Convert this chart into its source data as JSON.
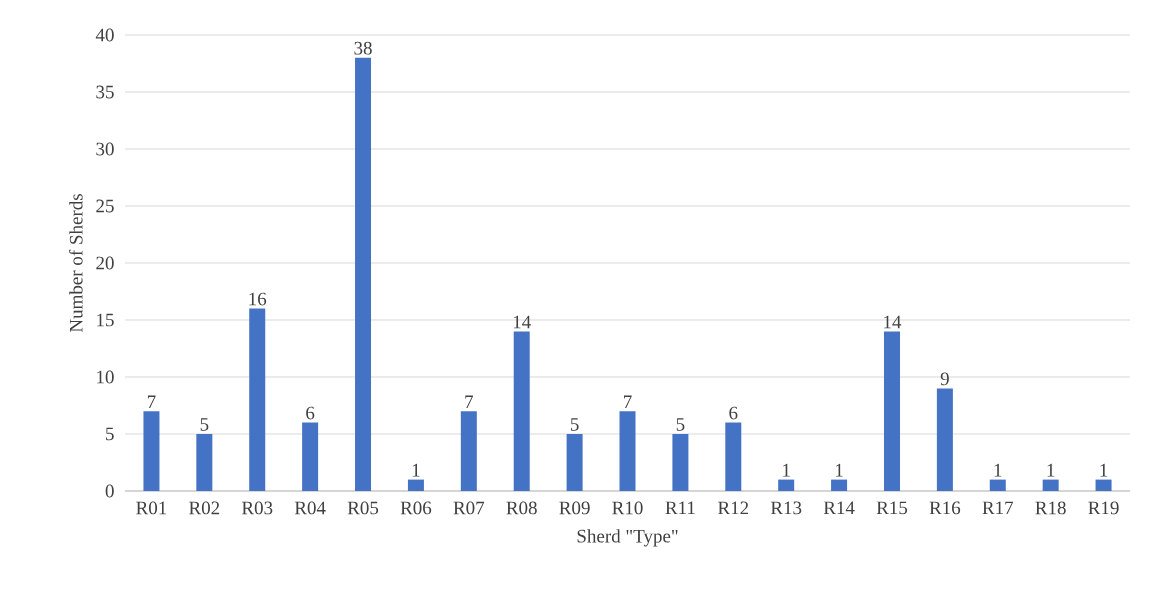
{
  "chart_data": {
    "type": "bar",
    "xlabel": "Sherd \"Type\"",
    "ylabel": "Number of Sherds",
    "categories": [
      "R01",
      "R02",
      "R03",
      "R04",
      "R05",
      "R06",
      "R07",
      "R08",
      "R09",
      "R10",
      "R11",
      "R12",
      "R13",
      "R14",
      "R15",
      "R16",
      "R17",
      "R18",
      "R19"
    ],
    "values": [
      7,
      5,
      16,
      6,
      38,
      1,
      7,
      14,
      5,
      7,
      5,
      6,
      1,
      1,
      14,
      9,
      1,
      1,
      1
    ],
    "color": "#4472c4",
    "ylim": [
      0,
      40
    ],
    "yticks": [
      0,
      5,
      10,
      15,
      20,
      25,
      30,
      35,
      40
    ],
    "grid": "y",
    "data_labels": true
  }
}
